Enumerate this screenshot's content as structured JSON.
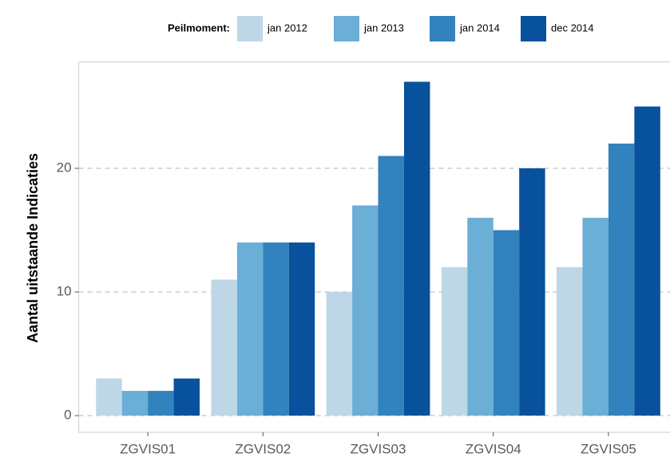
{
  "chart_data": {
    "type": "bar",
    "y_label": "Aantal uitstaande Indicaties",
    "legend_title": "Peilmoment:",
    "categories": [
      "ZGVIS01",
      "ZGVIS02",
      "ZGVIS03",
      "ZGVIS04",
      "ZGVIS05"
    ],
    "series": [
      {
        "name": "jan 2012",
        "color": "#bdd7e7",
        "values": [
          3,
          11,
          10,
          12,
          12
        ]
      },
      {
        "name": "jan 2013",
        "color": "#6baed6",
        "values": [
          2,
          14,
          17,
          16,
          16
        ]
      },
      {
        "name": "jan 2014",
        "color": "#3182bd",
        "values": [
          2,
          14,
          21,
          15,
          22
        ]
      },
      {
        "name": "dec 2014",
        "color": "#08519c",
        "values": [
          3,
          14,
          27,
          20,
          25
        ]
      }
    ],
    "ylim": [
      -1.35,
      28.35
    ],
    "yticks": [
      0,
      10,
      20
    ],
    "grid": true,
    "legend": "top"
  }
}
